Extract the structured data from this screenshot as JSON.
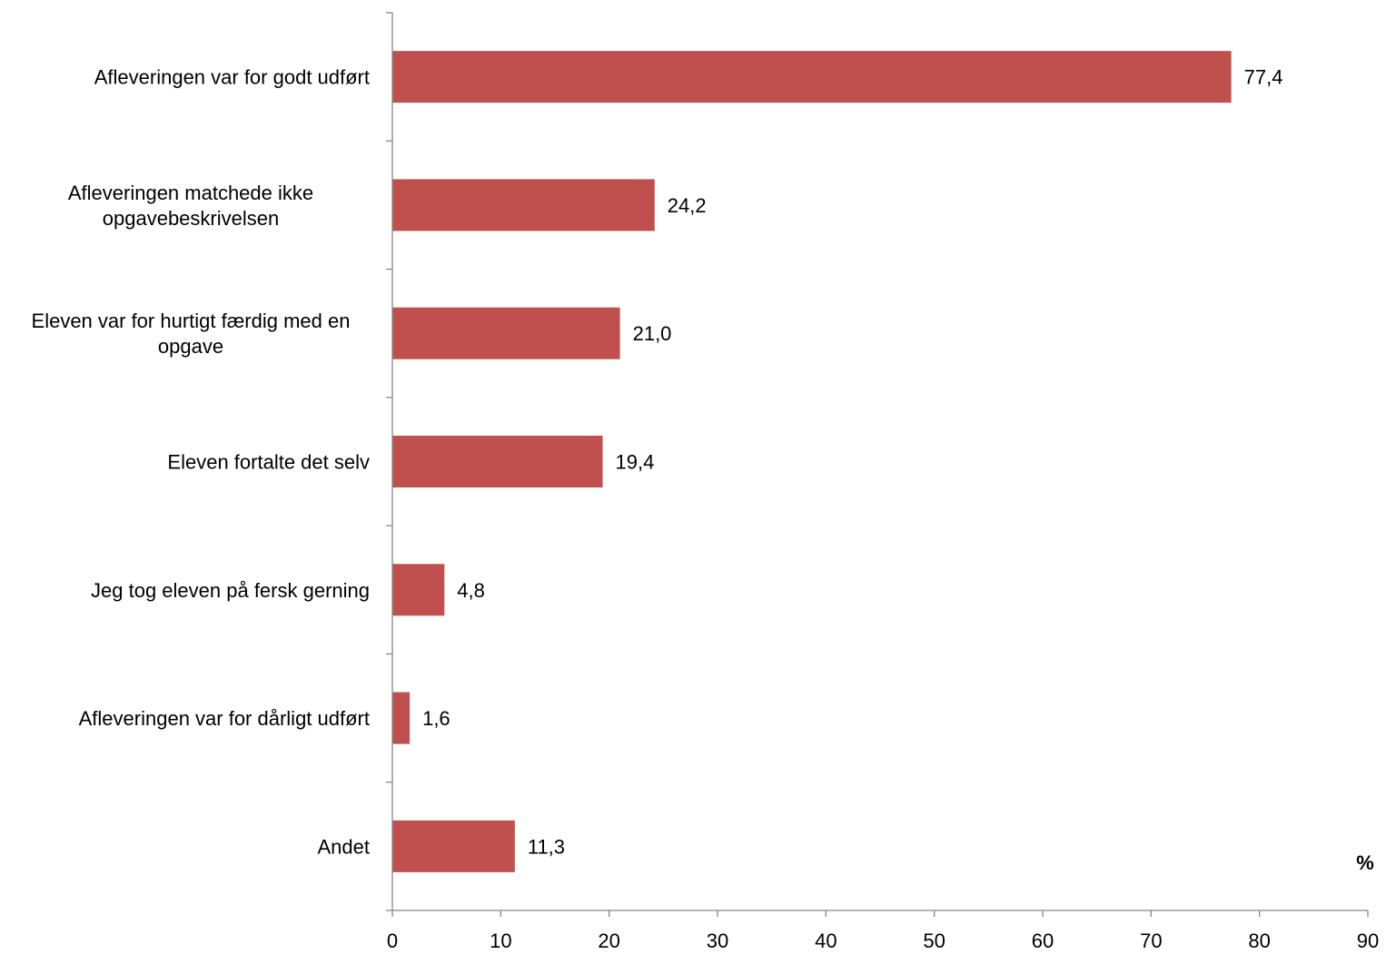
{
  "chart_data": {
    "type": "bar",
    "orientation": "horizontal",
    "categories": [
      "Afleveringen var for godt udført",
      "Afleveringen matchede ikke opgavebeskrivelsen",
      "Eleven var for hurtigt færdig med en opgave",
      "Eleven fortalte det selv",
      "Jeg tog eleven på fersk gerning",
      "Afleveringen var for dårligt udført",
      "Andet"
    ],
    "category_lines": [
      [
        "Afleveringen var for godt udført"
      ],
      [
        "Afleveringen matchede ikke",
        "opgavebeskrivelsen"
      ],
      [
        "Eleven var for hurtigt færdig med en",
        "opgave"
      ],
      [
        "Eleven fortalte det selv"
      ],
      [
        "Jeg tog eleven på fersk gerning"
      ],
      [
        "Afleveringen var for dårligt udført"
      ],
      [
        "Andet"
      ]
    ],
    "values": [
      77.4,
      24.2,
      21.0,
      19.4,
      4.8,
      1.6,
      11.3
    ],
    "data_labels": [
      "77,4",
      "24,2",
      "21,0",
      "19,4",
      "4,8",
      "1,6",
      "11,3"
    ],
    "xlim": [
      0,
      90
    ],
    "x_ticks": [
      0,
      10,
      20,
      30,
      40,
      50,
      60,
      70,
      80,
      90
    ],
    "x_tick_labels": [
      "0",
      "10",
      "20",
      "30",
      "40",
      "50",
      "60",
      "70",
      "80",
      "90"
    ],
    "unit_label": "%",
    "grid": false,
    "legend": "none",
    "bar_color": "#C0504D"
  }
}
